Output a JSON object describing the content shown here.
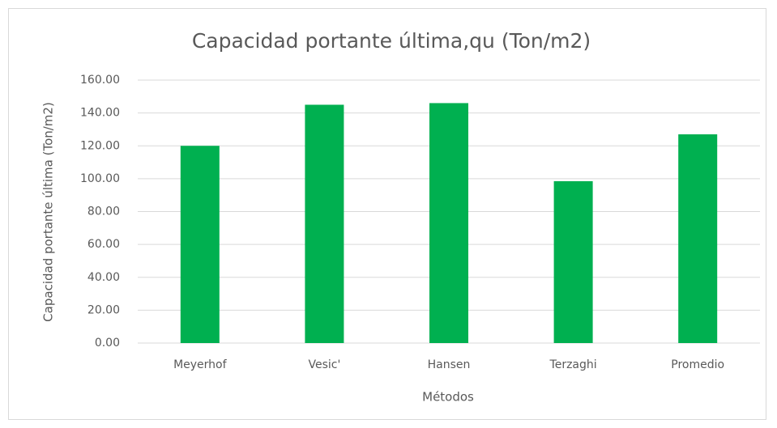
{
  "chart_data": {
    "type": "bar",
    "title": "Capacidad portante última,qu (Ton/m2)",
    "x_label": "Métodos",
    "y_label": "Capacidad portante última (Ton/m2)",
    "categories": [
      "Meyerhof",
      "Vesic'",
      "Hansen",
      "Terzaghi",
      "Promedio"
    ],
    "values": [
      120,
      145,
      146,
      98.5,
      127
    ],
    "color": "#00b050",
    "ylim": [
      0,
      160
    ],
    "yticks": [
      {
        "value": 0,
        "label": "0.00"
      },
      {
        "value": 20,
        "label": "20.00"
      },
      {
        "value": 40,
        "label": "40.00"
      },
      {
        "value": 60,
        "label": "60.00"
      },
      {
        "value": 80,
        "label": "80.00"
      },
      {
        "value": 100,
        "label": "100.00"
      },
      {
        "value": 120,
        "label": "120.00"
      },
      {
        "value": 140,
        "label": "140.00"
      },
      {
        "value": 160,
        "label": "160.00"
      }
    ],
    "grid": true
  }
}
